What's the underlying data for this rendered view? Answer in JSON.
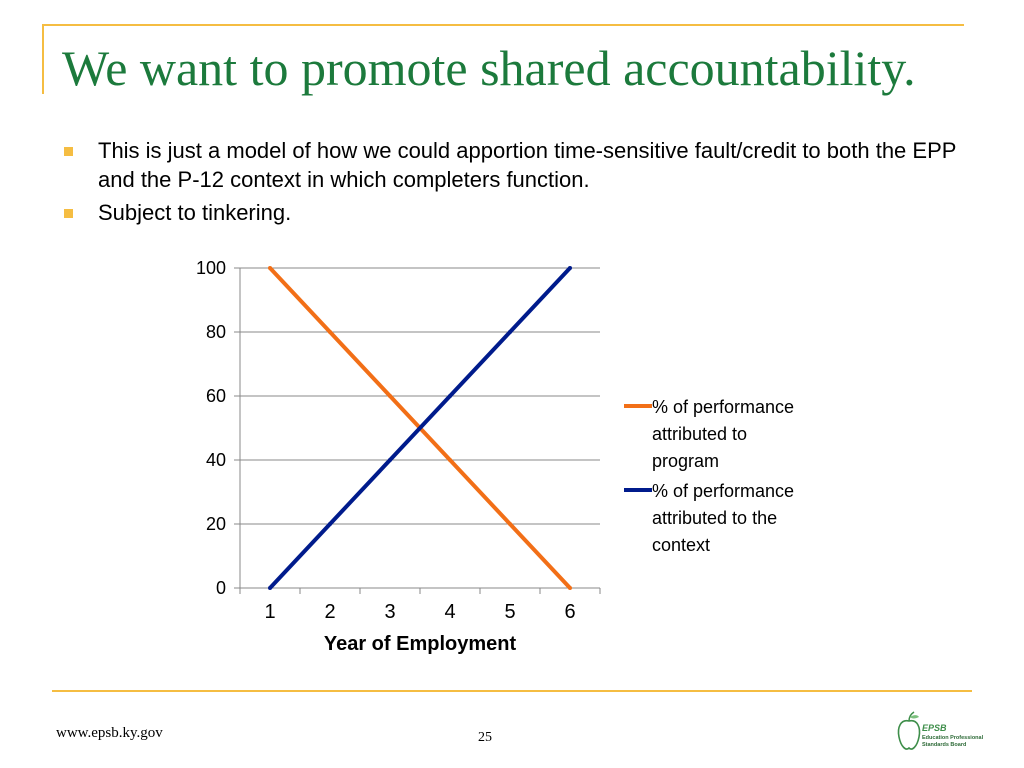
{
  "slide": {
    "title": "We want to promote shared accountability.",
    "bullets": [
      "This is just a model of how we could apportion time-sensitive fault/credit to both the EPP and the P-12 context in which completers function.",
      "Subject to tinkering."
    ]
  },
  "footer": {
    "url": "www.epsb.ky.gov",
    "page_number": "25",
    "logo": {
      "name": "EPSB",
      "line1": "Education Professional",
      "line2": "Standards Board"
    }
  },
  "colors": {
    "accent": "#f5bd42",
    "title": "#1c7a3c",
    "series_program": "#f26f17",
    "series_context": "#001b8c"
  },
  "chart_data": {
    "type": "line",
    "title": "",
    "xlabel": "Year of Employment",
    "ylabel": "",
    "x": [
      1,
      2,
      3,
      4,
      5,
      6
    ],
    "ylim": [
      0,
      100
    ],
    "yticks": [
      0,
      20,
      40,
      60,
      80,
      100
    ],
    "grid": true,
    "legend_position": "right",
    "series": [
      {
        "name": "% of performance attributed to program",
        "color": "#f26f17",
        "values": [
          100,
          80,
          60,
          40,
          20,
          0
        ]
      },
      {
        "name": "% of performance attributed to the context",
        "color": "#001b8c",
        "values": [
          0,
          20,
          40,
          60,
          80,
          100
        ]
      }
    ]
  }
}
